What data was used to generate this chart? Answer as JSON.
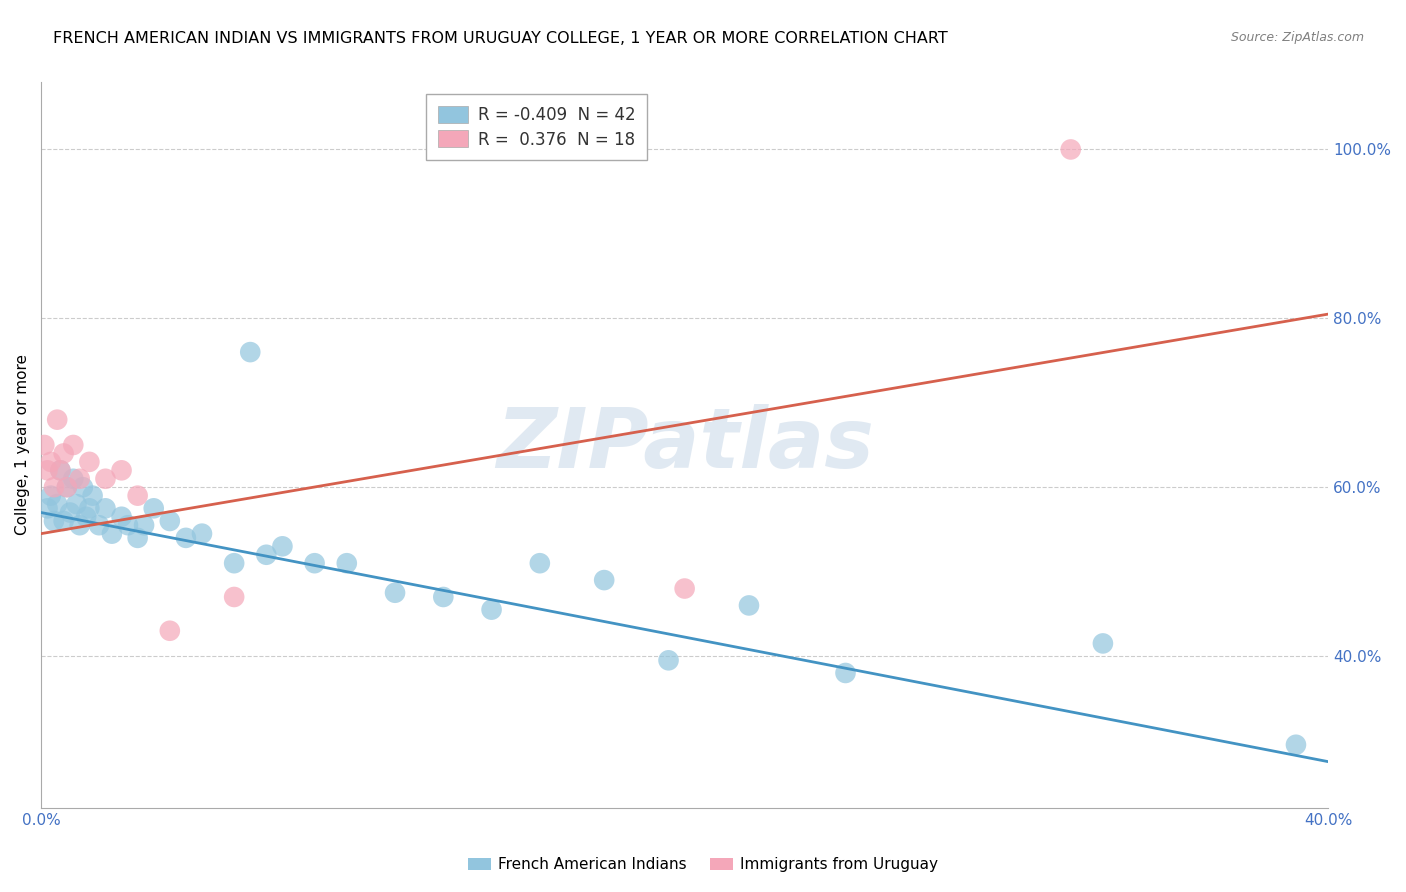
{
  "title": "FRENCH AMERICAN INDIAN VS IMMIGRANTS FROM URUGUAY COLLEGE, 1 YEAR OR MORE CORRELATION CHART",
  "source": "Source: ZipAtlas.com",
  "ylabel": "College, 1 year or more",
  "xlim": [
    0.0,
    0.4
  ],
  "ylim": [
    0.22,
    1.08
  ],
  "xticks": [
    0.0,
    0.05,
    0.1,
    0.15,
    0.2,
    0.25,
    0.3,
    0.35,
    0.4
  ],
  "ytick_positions": [
    0.4,
    0.6,
    0.8,
    1.0
  ],
  "yticklabels": [
    "40.0%",
    "60.0%",
    "80.0%",
    "100.0%"
  ],
  "blue_R": -0.409,
  "blue_N": 42,
  "pink_R": 0.376,
  "pink_N": 18,
  "blue_color": "#92c5de",
  "pink_color": "#f4a7b9",
  "blue_line_color": "#4393c3",
  "pink_line_color": "#d6604d",
  "watermark": "ZIPatlas",
  "legend_label_blue": "French American Indians",
  "legend_label_pink": "Immigrants from Uruguay",
  "blue_scatter_x": [
    0.002,
    0.003,
    0.004,
    0.005,
    0.006,
    0.007,
    0.008,
    0.009,
    0.01,
    0.011,
    0.012,
    0.013,
    0.014,
    0.015,
    0.016,
    0.018,
    0.02,
    0.022,
    0.025,
    0.027,
    0.03,
    0.032,
    0.035,
    0.04,
    0.045,
    0.05,
    0.06,
    0.065,
    0.07,
    0.075,
    0.085,
    0.095,
    0.11,
    0.125,
    0.14,
    0.155,
    0.175,
    0.195,
    0.22,
    0.25,
    0.33,
    0.39
  ],
  "blue_scatter_y": [
    0.575,
    0.59,
    0.56,
    0.58,
    0.62,
    0.56,
    0.6,
    0.57,
    0.61,
    0.58,
    0.555,
    0.6,
    0.565,
    0.575,
    0.59,
    0.555,
    0.575,
    0.545,
    0.565,
    0.555,
    0.54,
    0.555,
    0.575,
    0.56,
    0.54,
    0.545,
    0.51,
    0.76,
    0.52,
    0.53,
    0.51,
    0.51,
    0.475,
    0.47,
    0.455,
    0.51,
    0.49,
    0.395,
    0.46,
    0.38,
    0.415,
    0.295
  ],
  "pink_scatter_x": [
    0.001,
    0.002,
    0.003,
    0.004,
    0.005,
    0.006,
    0.007,
    0.008,
    0.01,
    0.012,
    0.015,
    0.02,
    0.025,
    0.03,
    0.04,
    0.06,
    0.2,
    0.32
  ],
  "pink_scatter_y": [
    0.65,
    0.62,
    0.63,
    0.6,
    0.68,
    0.62,
    0.64,
    0.6,
    0.65,
    0.61,
    0.63,
    0.61,
    0.62,
    0.59,
    0.43,
    0.47,
    0.48,
    1.0
  ],
  "blue_trend_x": [
    0.0,
    0.4
  ],
  "blue_trend_y": [
    0.57,
    0.275
  ],
  "pink_trend_x": [
    0.0,
    0.4
  ],
  "pink_trend_y": [
    0.545,
    0.805
  ],
  "grid_color": "#cccccc",
  "background_color": "#ffffff",
  "title_fontsize": 11.5,
  "axis_fontsize": 11,
  "tick_fontsize": 11
}
